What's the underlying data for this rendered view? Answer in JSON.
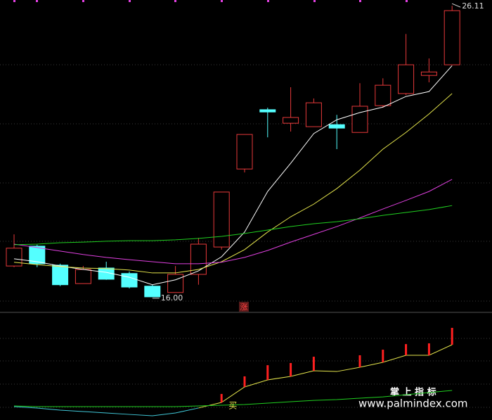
{
  "chart_data": [
    {
      "type": "candlestick",
      "open": [
        17.07,
        17.76,
        17.1,
        16.46,
        17.0,
        16.81,
        16.37,
        16.15,
        16.78,
        17.73,
        20.44,
        22.5,
        22.03,
        21.91,
        21.98,
        21.71,
        22.64,
        23.06,
        23.69,
        24.06
      ],
      "high": [
        18.17,
        17.81,
        17.15,
        17.07,
        17.22,
        16.88,
        16.42,
        17.07,
        18.05,
        19.64,
        21.64,
        22.57,
        23.28,
        22.89,
        22.32,
        23.42,
        23.59,
        25.13,
        24.28,
        26.11
      ],
      "low": [
        17.03,
        17.03,
        16.37,
        16.46,
        16.59,
        16.29,
        16.0,
        16.15,
        16.42,
        17.64,
        20.32,
        21.54,
        21.74,
        21.91,
        21.13,
        21.71,
        22.57,
        23.01,
        23.45,
        24.06
      ],
      "close": [
        17.69,
        17.15,
        16.42,
        16.95,
        16.61,
        16.34,
        16.0,
        16.78,
        17.83,
        19.64,
        21.64,
        22.42,
        22.23,
        22.74,
        21.86,
        22.62,
        23.35,
        24.06,
        23.81,
        25.94
      ],
      "up_color": "#e8393a",
      "down_color": "#54ffff",
      "series": [
        {
          "color": "#ffffff",
          "values": [
            17.32,
            17.22,
            17.07,
            16.95,
            16.85,
            16.68,
            16.42,
            16.59,
            16.9,
            17.39,
            18.25,
            19.66,
            20.64,
            21.67,
            22.15,
            22.4,
            22.59,
            22.96,
            23.13,
            24.03
          ]
        },
        {
          "color": "#e5e54c",
          "values": [
            17.2,
            17.12,
            17.05,
            17.0,
            16.98,
            16.93,
            16.83,
            16.83,
            16.95,
            17.22,
            17.64,
            18.25,
            18.78,
            19.22,
            19.76,
            20.4,
            21.13,
            21.71,
            22.35,
            23.06
          ]
        },
        {
          "color": "#e040e0",
          "values": [
            17.83,
            17.71,
            17.59,
            17.47,
            17.37,
            17.29,
            17.22,
            17.15,
            17.15,
            17.2,
            17.37,
            17.61,
            17.9,
            18.17,
            18.44,
            18.74,
            19.05,
            19.35,
            19.66,
            20.08
          ]
        },
        {
          "color": "#20d020",
          "values": [
            17.81,
            17.83,
            17.88,
            17.9,
            17.93,
            17.95,
            17.95,
            17.98,
            18.03,
            18.1,
            18.2,
            18.32,
            18.44,
            18.54,
            18.61,
            18.71,
            18.83,
            18.93,
            19.03,
            19.17
          ]
        }
      ],
      "ylim": [
        15.46,
        26.31
      ],
      "max_label": 26.11,
      "min_label": {
        "value": 16,
        "label": "16.00"
      },
      "marker_text": "涨"
    },
    {
      "type": "line",
      "series": [
        {
          "color": "#40c8d8",
          "values": [
            12.9,
            11.6,
            9.5,
            8.2,
            6.8,
            5.4,
            4.1,
            6.8,
            11.6,
            null,
            null,
            null,
            null,
            null,
            null,
            null,
            null,
            null,
            null,
            null
          ]
        },
        {
          "color": "#e5e54c",
          "values": [
            null,
            null,
            null,
            null,
            null,
            null,
            null,
            null,
            11.6,
            17.0,
            32.0,
            38.8,
            42.2,
            47.6,
            46.9,
            51.0,
            55.8,
            62.6,
            62.6,
            72.8
          ]
        },
        {
          "color": "#20d020",
          "values": [
            13.6,
            12.9,
            12.9,
            12.9,
            12.9,
            12.9,
            12.9,
            12.9,
            13.6,
            14.3,
            15.0,
            16.3,
            17.7,
            19.0,
            19.7,
            21.1,
            22.4,
            24.5,
            26.5,
            28.6
          ]
        }
      ],
      "signal": {
        "color": "#ff2020",
        "values": [
          null,
          null,
          null,
          null,
          null,
          null,
          null,
          null,
          null,
          25.2,
          42.2,
          53.0,
          55.1,
          61.2,
          null,
          62.6,
          68.0,
          73.4,
          74.1,
          89.1
        ]
      },
      "ylim": [
        0,
        100
      ],
      "signal_text": "买"
    }
  ],
  "watermark": {
    "title": "掌 上 指 标",
    "url": "www.palmindex.com"
  }
}
